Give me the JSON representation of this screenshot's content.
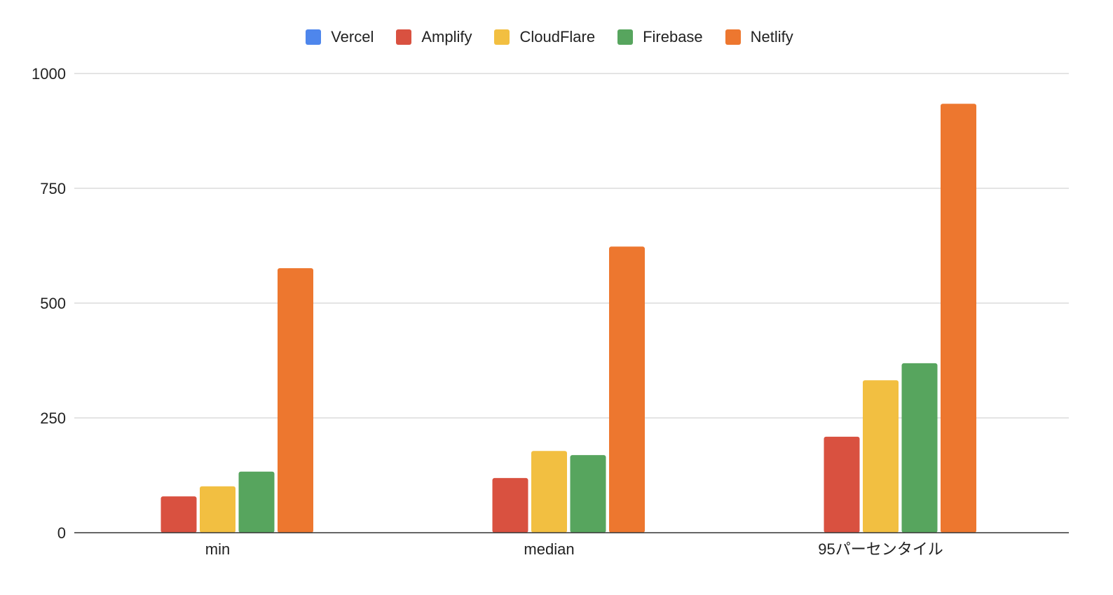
{
  "chart_data": {
    "type": "bar",
    "categories": [
      "min",
      "median",
      "95パーセンタイル"
    ],
    "series": [
      {
        "name": "Vercel",
        "color": "#4e86ec",
        "values": [
          null,
          null,
          null
        ]
      },
      {
        "name": "Amplify",
        "color": "#d95140",
        "values": [
          79,
          119,
          209
        ]
      },
      {
        "name": "CloudFlare",
        "color": "#f2bf41",
        "values": [
          101,
          178,
          332
        ]
      },
      {
        "name": "Firebase",
        "color": "#57a55e",
        "values": [
          133,
          169,
          369
        ]
      },
      {
        "name": "Netlify",
        "color": "#ed772f",
        "values": [
          576,
          623,
          934
        ]
      }
    ],
    "ylim": [
      0,
      1000
    ],
    "yticks": [
      "0",
      "250",
      "500",
      "750",
      "1000"
    ],
    "grid": true,
    "legend": "top"
  }
}
